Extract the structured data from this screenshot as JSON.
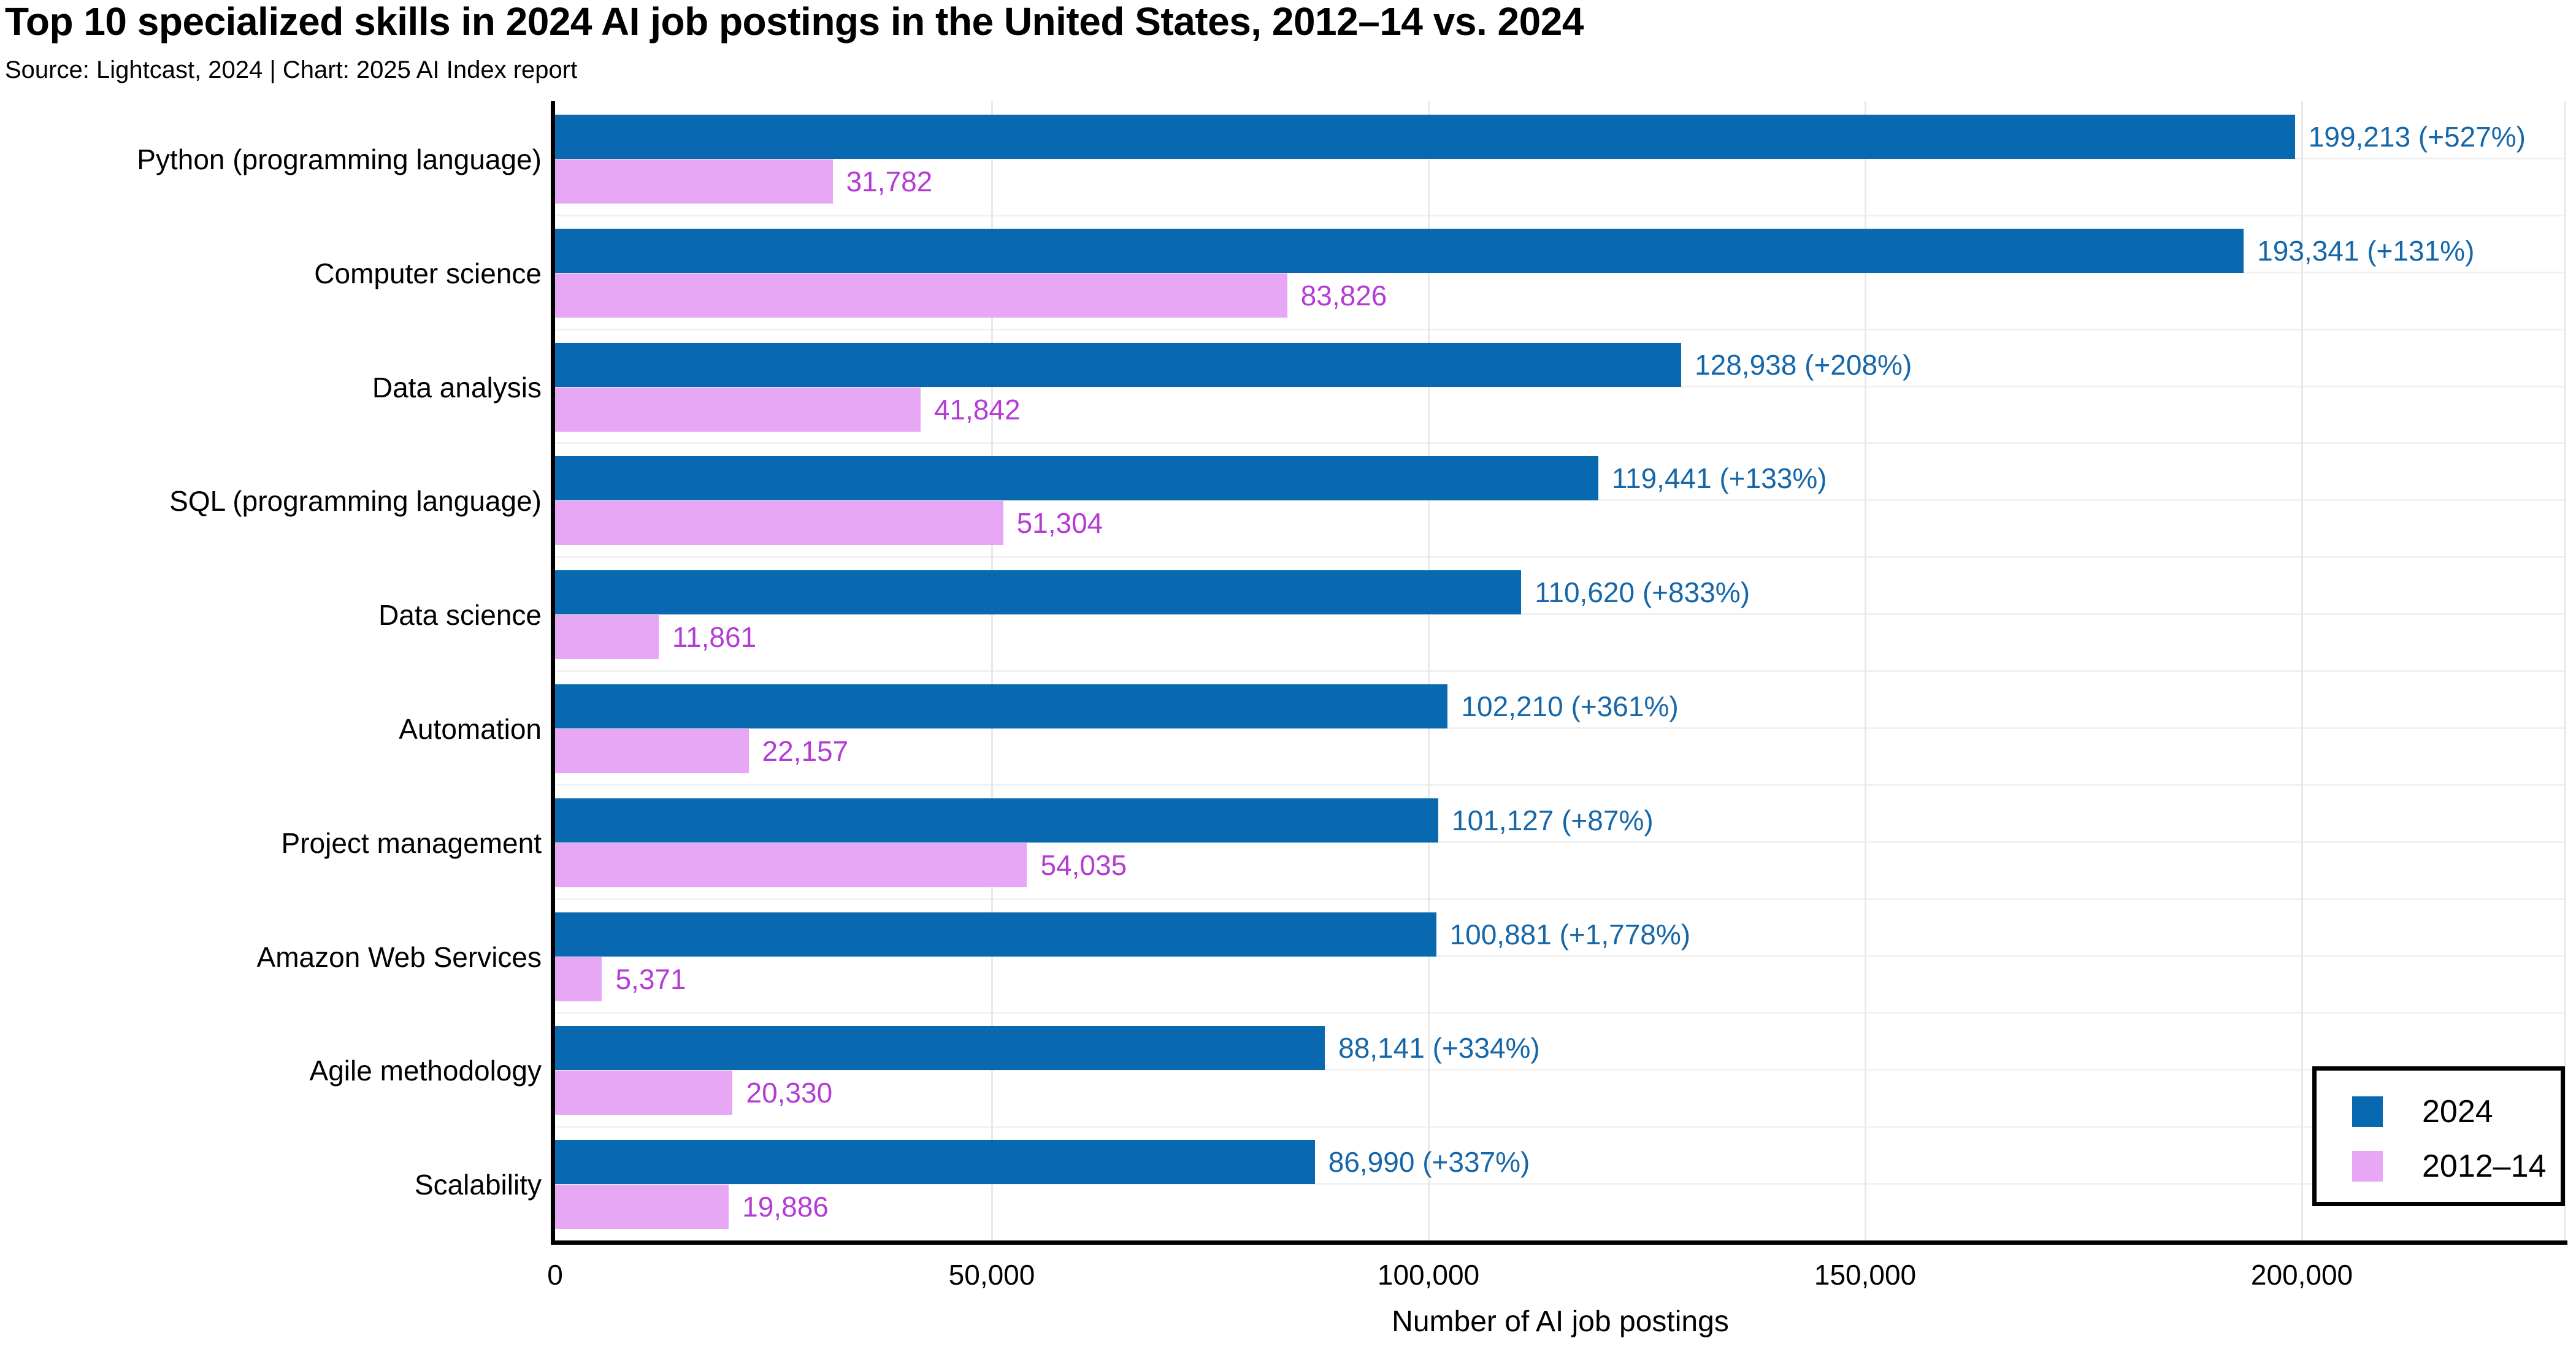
{
  "title": "Top 10 specialized skills in 2024 AI job postings in the United States, 2012–14 vs. 2024",
  "subtitle": "Source: Lightcast, 2024 | Chart: 2025 AI Index report",
  "chart_data": {
    "type": "bar",
    "orientation": "horizontal",
    "title": "Top 10 specialized skills in 2024 AI job postings in the United States, 2012–14 vs. 2024",
    "categories": [
      "Python (programming language)",
      "Computer science",
      "Data analysis",
      "SQL (programming language)",
      "Data science",
      "Automation",
      "Project management",
      "Amazon Web Services",
      "Agile methodology",
      "Scalability"
    ],
    "series": [
      {
        "name": "2024",
        "color": "#0969B0",
        "label_color": "#1667A9",
        "values": [
          199213,
          193341,
          128938,
          119441,
          110620,
          102210,
          101127,
          100881,
          88141,
          86990
        ],
        "labels": [
          "199,213 (+527%)",
          "193,341 (+131%)",
          "128,938 (+208%)",
          "119,441 (+133%)",
          "110,620 (+833%)",
          "102,210 (+361%)",
          "101,127 (+87%)",
          "100,881 (+1,778%)",
          "88,141 (+334%)",
          "86,990 (+337%)"
        ]
      },
      {
        "name": "2012–14",
        "color": "#E8A7F4",
        "label_color": "#B43CD4",
        "values": [
          31782,
          83826,
          41842,
          51304,
          11861,
          22157,
          54035,
          5371,
          20330,
          19886
        ],
        "labels": [
          "31,782",
          "83,826",
          "41,842",
          "51,304",
          "11,861",
          "22,157",
          "54,035",
          "5,371",
          "20,330",
          "19,886"
        ]
      }
    ],
    "xlabel": "Number of AI job postings",
    "xlim": [
      0,
      230000
    ],
    "xticks": {
      "values": [
        0,
        50000,
        100000,
        150000,
        200000
      ],
      "labels": [
        "0",
        "50,000",
        "100,000",
        "150,000",
        "200,000"
      ]
    },
    "grid": true,
    "legend_position": "bottom-right"
  }
}
